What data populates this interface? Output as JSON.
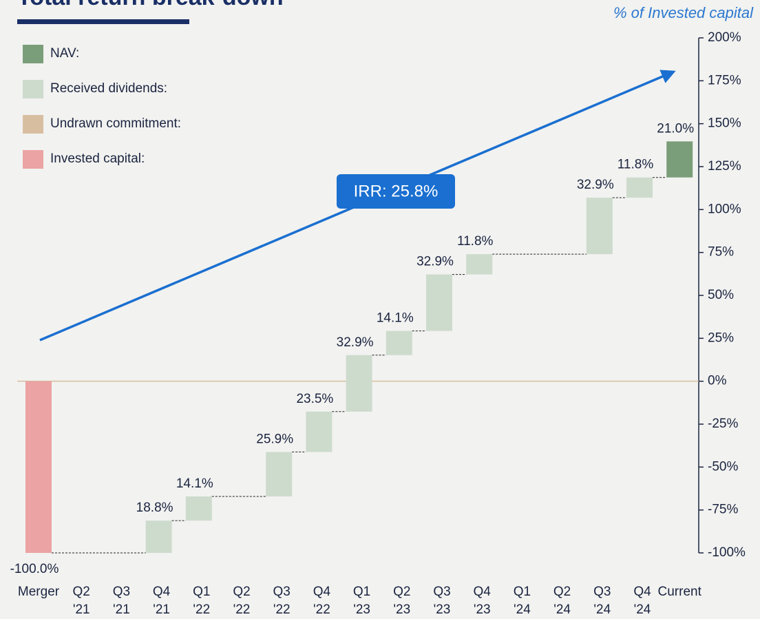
{
  "chart_data": {
    "type": "waterfall",
    "title": "Total return break-down",
    "y_axis_label": "% of Invested capital",
    "annotation": "IRR: 25.8%",
    "categories": [
      [
        "Merger"
      ],
      [
        "Q2",
        "'21"
      ],
      [
        "Q3",
        "'21"
      ],
      [
        "Q4",
        "'21"
      ],
      [
        "Q1",
        "'22"
      ],
      [
        "Q2",
        "'22"
      ],
      [
        "Q3",
        "'22"
      ],
      [
        "Q4",
        "'22"
      ],
      [
        "Q1",
        "'23"
      ],
      [
        "Q2",
        "'23"
      ],
      [
        "Q3",
        "'23"
      ],
      [
        "Q4",
        "'23"
      ],
      [
        "Q1",
        "'24"
      ],
      [
        "Q2",
        "'24"
      ],
      [
        "Q3",
        "'24"
      ],
      [
        "Q4",
        "'24"
      ],
      [
        "Current"
      ]
    ],
    "values": [
      -100,
      null,
      null,
      18.8,
      14.1,
      null,
      25.9,
      23.5,
      32.9,
      14.1,
      32.9,
      11.8,
      null,
      null,
      32.9,
      11.8,
      21.0
    ],
    "value_labels": [
      "-100.0%",
      null,
      null,
      "18.8%",
      "14.1%",
      null,
      "25.9%",
      "23.5%",
      "32.9%",
      "14.1%",
      "32.9%",
      "11.8%",
      null,
      null,
      "32.9%",
      "11.8%",
      "21.0%"
    ],
    "colors": [
      "#eba3a3",
      null,
      null,
      "#cddbcd",
      "#cddbcd",
      null,
      "#cddbcd",
      "#cddbcd",
      "#cddbcd",
      "#cddbcd",
      "#cddbcd",
      "#cddbcd",
      null,
      null,
      "#cddbcd",
      "#cddbcd",
      "#7a9e7a"
    ],
    "legend": [
      {
        "name": "NAV:",
        "color": "#7a9e7a"
      },
      {
        "name": "Received dividends:",
        "color": "#cddbcd"
      },
      {
        "name": "Undrawn commitment:",
        "color": "#d8bea0"
      },
      {
        "name": "Invested capital:",
        "color": "#eba3a3"
      }
    ],
    "ylim": [
      -100,
      200
    ],
    "yticks": [
      {
        "value": -100,
        "label": "-100%"
      },
      {
        "value": -75,
        "label": "-75%"
      },
      {
        "value": -50,
        "label": "-50%"
      },
      {
        "value": -25,
        "label": "-25%"
      },
      {
        "value": 0,
        "label": "0%"
      },
      {
        "value": 25,
        "label": "25%"
      },
      {
        "value": 50,
        "label": "50%"
      },
      {
        "value": 75,
        "label": "75%"
      },
      {
        "value": 100,
        "label": "100%"
      },
      {
        "value": 125,
        "label": "125%"
      },
      {
        "value": 150,
        "label": "150%"
      },
      {
        "value": 175,
        "label": "175%"
      },
      {
        "value": 200,
        "label": "200%"
      }
    ],
    "y_axis_side": "right"
  }
}
